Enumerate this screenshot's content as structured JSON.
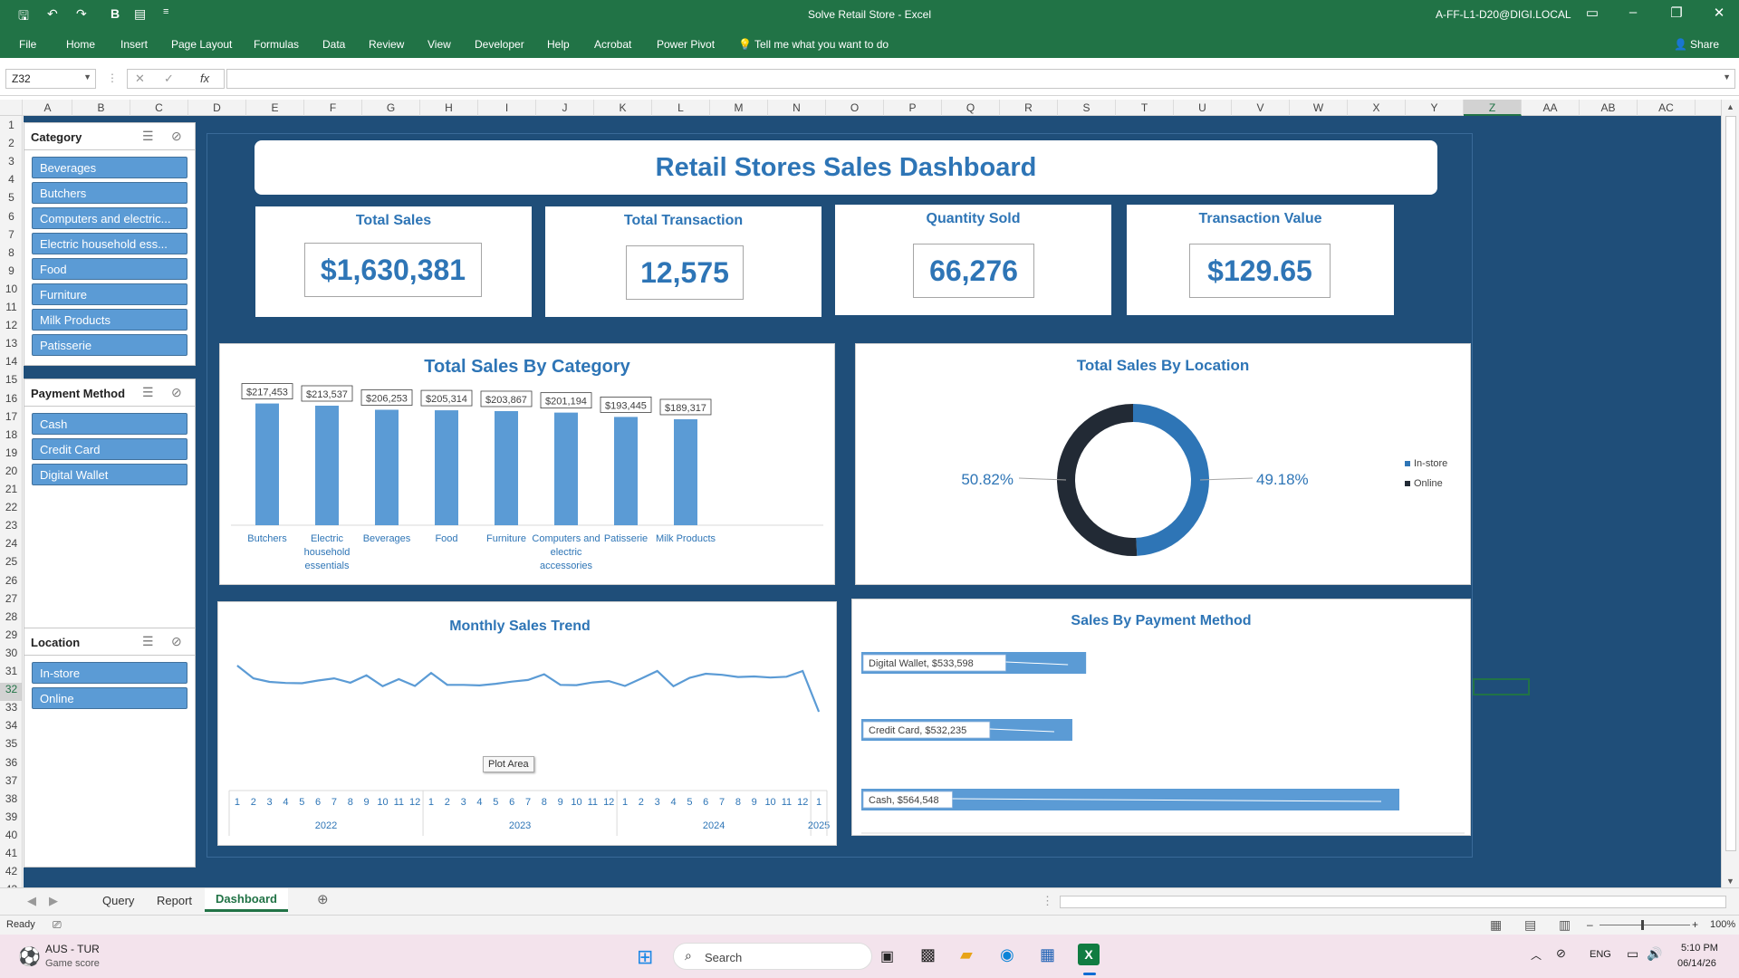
{
  "window": {
    "title": "Solve Retail Store  -  Excel",
    "account": "A-FF-L1-D20@DIGI.LOCAL"
  },
  "ribbon": {
    "tabs": [
      "File",
      "Home",
      "Insert",
      "Page Layout",
      "Formulas",
      "Data",
      "Review",
      "View",
      "Developer",
      "Help",
      "Acrobat",
      "Power Pivot"
    ],
    "tell_me": "Tell me what you want to do",
    "share": "Share"
  },
  "formula_bar": {
    "name_box": "Z32",
    "formula": ""
  },
  "grid": {
    "columns": [
      "A",
      "B",
      "C",
      "D",
      "E",
      "F",
      "G",
      "H",
      "I",
      "J",
      "K",
      "L",
      "M",
      "N",
      "O",
      "P",
      "Q",
      "R",
      "S",
      "T",
      "U",
      "V",
      "W",
      "X",
      "Y",
      "Z",
      "AA",
      "AB",
      "AC"
    ],
    "selected_column": "Z",
    "rows": [
      "1",
      "2",
      "3",
      "4",
      "5",
      "6",
      "7",
      "8",
      "9",
      "10",
      "11",
      "12",
      "13",
      "14",
      "15",
      "16",
      "17",
      "18",
      "19",
      "20",
      "21",
      "22",
      "23",
      "24",
      "25",
      "26",
      "27",
      "28",
      "29",
      "30",
      "31",
      "32",
      "33",
      "34",
      "35",
      "36",
      "37",
      "38",
      "39",
      "40",
      "41",
      "42",
      "43"
    ],
    "selected_row": "32"
  },
  "slicers": {
    "category": {
      "title": "Category",
      "items": [
        "Beverages",
        "Butchers",
        "Computers and electric...",
        "Electric household ess...",
        "Food",
        "Furniture",
        "Milk Products",
        "Patisserie"
      ]
    },
    "payment": {
      "title": "Payment Method",
      "items": [
        "Cash",
        "Credit Card",
        "Digital Wallet"
      ]
    },
    "location": {
      "title": "Location",
      "items": [
        "In-store",
        "Online"
      ]
    }
  },
  "dashboard": {
    "title": "Retail Stores Sales Dashboard",
    "kpis": [
      {
        "label": "Total Sales",
        "value": "$1,630,381"
      },
      {
        "label": "Total Transaction",
        "value": "12,575"
      },
      {
        "label": "Quantity Sold",
        "value": "66,276"
      },
      {
        "label": "Transaction Value",
        "value": "$129.65"
      }
    ],
    "tooltip": "Plot Area"
  },
  "chart_data": [
    {
      "type": "bar",
      "title": "Total Sales By Category",
      "categories": [
        "Butchers",
        "Electric household essentials",
        "Beverages",
        "Food",
        "Furniture",
        "Computers and electric accessories",
        "Patisserie",
        "Milk Products"
      ],
      "category_lines": [
        [
          "Butchers"
        ],
        [
          "Electric",
          "household",
          "essentials"
        ],
        [
          "Beverages"
        ],
        [
          "Food"
        ],
        [
          "Furniture"
        ],
        [
          "Computers and",
          "electric",
          "accessories"
        ],
        [
          "Patisserie"
        ],
        [
          "Milk Products"
        ]
      ],
      "values": [
        217453,
        213537,
        206253,
        205314,
        203867,
        201194,
        193445,
        189317
      ],
      "data_labels": [
        "$217,453",
        "$213,537",
        "$206,253",
        "$205,314",
        "$203,867",
        "$201,194",
        "$193,445",
        "$189,317"
      ],
      "color": "#5b9bd5"
    },
    {
      "type": "pie",
      "title": "Total Sales By Location",
      "labels": [
        "In-store",
        "Online"
      ],
      "values": [
        49.18,
        50.82
      ],
      "data_labels": [
        "49.18%",
        "50.82%"
      ],
      "colors": [
        "#2e75b6",
        "#222a35"
      ],
      "legend": "right"
    },
    {
      "type": "line",
      "title": "Monthly Sales Trend",
      "months": [
        "1",
        "2",
        "3",
        "4",
        "5",
        "6",
        "7",
        "8",
        "9",
        "10",
        "11",
        "12",
        "1",
        "2",
        "3",
        "4",
        "5",
        "6",
        "7",
        "8",
        "9",
        "10",
        "11",
        "12",
        "1",
        "2",
        "3",
        "4",
        "5",
        "6",
        "7",
        "8",
        "9",
        "10",
        "11",
        "12",
        "1"
      ],
      "years": [
        "2022",
        "2023",
        "2024",
        "2025"
      ],
      "values": [
        50000,
        45300,
        44000,
        43600,
        43500,
        44500,
        45300,
        43700,
        46400,
        42400,
        45000,
        42500,
        47300,
        42900,
        42900,
        42700,
        43300,
        44100,
        44700,
        46800,
        42900,
        42800,
        43800,
        44300,
        42500,
        45200,
        48000,
        42400,
        45500,
        47000,
        46600,
        45800,
        46000,
        45600,
        45900,
        48000,
        33000
      ],
      "ylim": [
        20000,
        60000
      ],
      "color": "#5b9bd5"
    },
    {
      "type": "bar",
      "orientation": "horizontal",
      "title": "Sales By Payment Method",
      "categories": [
        "Digital Wallet",
        "Credit Card",
        "Cash"
      ],
      "values": [
        533598,
        532235,
        564548
      ],
      "data_labels": [
        "Digital Wallet,  $533,598",
        "Credit Card,  $532,235",
        "Cash,  $564,548"
      ],
      "color": "#5b9bd5"
    }
  ],
  "sheet_tabs": {
    "tabs": [
      "Query",
      "Report",
      "Dashboard"
    ],
    "active": "Dashboard"
  },
  "status_bar": {
    "ready": "Ready",
    "zoom": "100%"
  },
  "taskbar": {
    "weather_title": "AUS - TUR",
    "weather_sub": "Game score",
    "search": "Search",
    "lang": "ENG",
    "time": "5:10 PM",
    "date": "06/14/26"
  }
}
